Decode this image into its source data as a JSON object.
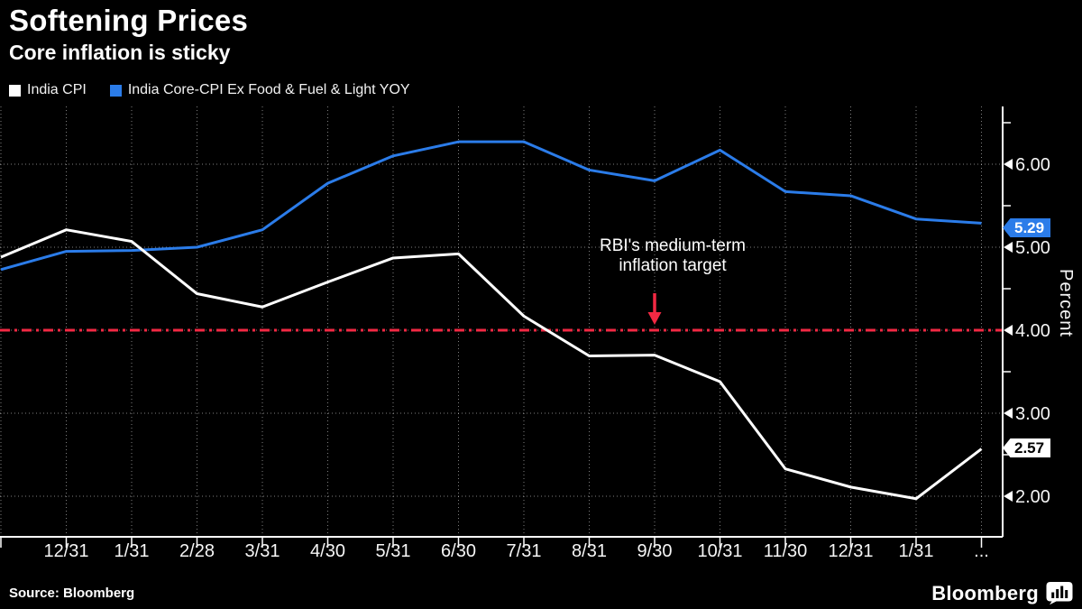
{
  "title": "Softening Prices",
  "subtitle": "Core inflation is sticky",
  "legend": [
    {
      "label": "India CPI",
      "color": "#ffffff"
    },
    {
      "label": "India Core-CPI Ex Food & Fuel & Light YOY",
      "color": "#2b7ce9"
    }
  ],
  "source": "Source: Bloomberg",
  "brand": "Bloomberg",
  "chart_data": {
    "type": "line",
    "x_labels": [
      "",
      "12/31",
      "1/31",
      "2/28",
      "3/31",
      "4/30",
      "5/31",
      "6/30",
      "7/31",
      "8/31",
      "9/30",
      "10/31",
      "11/30",
      "12/31",
      "1/31",
      "..."
    ],
    "y_ticks": [
      2,
      3,
      4,
      5,
      6
    ],
    "y_tick_labels": [
      "2.00",
      "3.00",
      "4.00",
      "5.00",
      "6.00"
    ],
    "y_minor_ticks": [
      2.5,
      3.5,
      4.5,
      5.5,
      6.5
    ],
    "ylabel": "Percent",
    "ylim": [
      1.51,
      6.7
    ],
    "grid": true,
    "legend_position": "top-left",
    "series": [
      {
        "name": "India CPI",
        "color": "#ffffff",
        "values": [
          4.88,
          5.21,
          5.07,
          4.44,
          4.28,
          4.58,
          4.87,
          4.92,
          4.17,
          3.69,
          3.7,
          3.38,
          2.33,
          2.11,
          1.97,
          2.57
        ],
        "end_label": "2.57"
      },
      {
        "name": "India Core-CPI Ex Food & Fuel & Light YOY",
        "color": "#2b7ce9",
        "values": [
          4.73,
          4.95,
          4.96,
          5.0,
          5.21,
          5.77,
          6.1,
          6.27,
          6.27,
          5.93,
          5.8,
          6.17,
          5.67,
          5.62,
          5.34,
          5.29
        ],
        "end_label": "5.29"
      }
    ],
    "target_line": {
      "value": 4.0,
      "color": "#f22943",
      "label_line1": "RBI's medium-term",
      "label_line2": "inflation target"
    }
  }
}
